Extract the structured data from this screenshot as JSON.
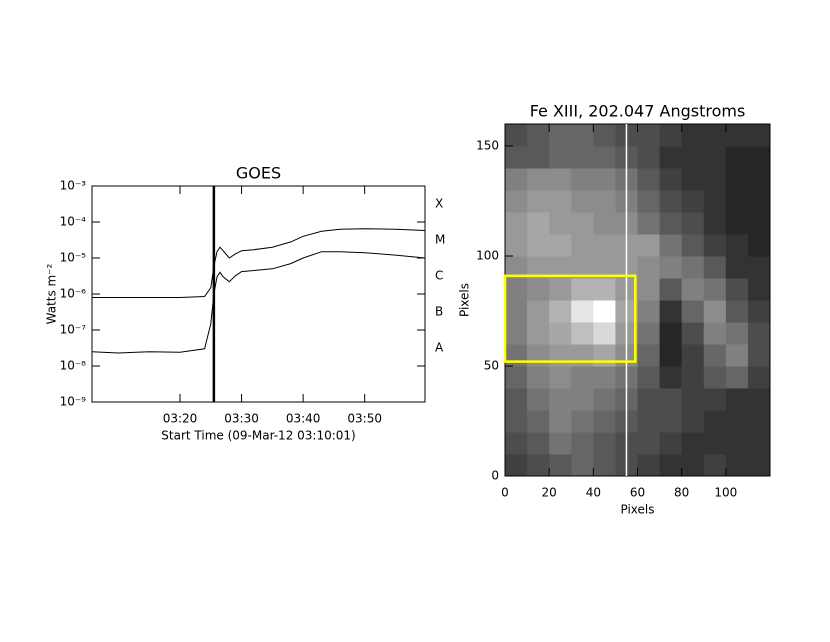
{
  "chart_data": [
    {
      "type": "line",
      "title": "GOES",
      "xlabel": "Start Time (09-Mar-12 03:10:01)",
      "ylabel": "Watts m⁻²",
      "log_y": true,
      "xlim": [
        5.7,
        59.8
      ],
      "xticks": [
        {
          "value": 20,
          "label": "03:20"
        },
        {
          "value": 30,
          "label": "03:30"
        },
        {
          "value": 40,
          "label": "03:40"
        },
        {
          "value": 50,
          "label": "03:50"
        }
      ],
      "ylim": [
        1e-09,
        0.001
      ],
      "yticks": [
        {
          "value": 1e-09,
          "label": "10⁻⁹"
        },
        {
          "value": 1e-08,
          "label": "10⁻⁸"
        },
        {
          "value": 1e-07,
          "label": "10⁻⁷"
        },
        {
          "value": 1e-06,
          "label": "10⁻⁶"
        },
        {
          "value": 1e-05,
          "label": "10⁻⁵"
        },
        {
          "value": 0.0001,
          "label": "10⁻⁴"
        },
        {
          "value": 0.001,
          "label": "10⁻³"
        }
      ],
      "flare_classes": [
        {
          "value": 1e-08,
          "label": "A"
        },
        {
          "value": 1e-07,
          "label": "B"
        },
        {
          "value": 1e-06,
          "label": "C"
        },
        {
          "value": 1e-05,
          "label": "M"
        },
        {
          "value": 0.0001,
          "label": "X"
        }
      ],
      "marker_x": 25.5,
      "x": [
        5.7,
        10,
        15,
        20,
        24,
        25,
        25.5,
        26,
        26.5,
        27,
        28,
        29,
        30,
        32,
        35,
        38,
        40,
        43,
        46,
        50,
        55,
        59.8
      ],
      "series": [
        {
          "color": "#000000",
          "values": [
            8e-07,
            8e-07,
            8e-07,
            8e-07,
            8.5e-07,
            1.5e-06,
            6e-06,
            1.5e-05,
            2e-05,
            1.6e-05,
            1e-05,
            1.3e-05,
            1.6e-05,
            1.7e-05,
            2e-05,
            2.8e-05,
            4e-05,
            5.5e-05,
            6.3e-05,
            6.5e-05,
            6.3e-05,
            5.8e-05
          ]
        },
        {
          "color": "#000000",
          "values": [
            2.5e-08,
            2.3e-08,
            2.5e-08,
            2.4e-08,
            3e-08,
            1.5e-07,
            1e-06,
            3e-06,
            4e-06,
            3e-06,
            2.2e-06,
            3.2e-06,
            4.2e-06,
            4.5e-06,
            5e-06,
            7e-06,
            1e-05,
            1.5e-05,
            1.5e-05,
            1.4e-05,
            1.2e-05,
            1e-05
          ]
        }
      ]
    },
    {
      "type": "image",
      "title": "Fe XIII, 202.047 Angstroms",
      "xlabel": "Pixels",
      "ylabel": "Pixels",
      "xlim": [
        0,
        120
      ],
      "ylim": [
        0,
        160
      ],
      "xticks": [
        0,
        20,
        40,
        60,
        80,
        100
      ],
      "yticks": [
        0,
        50,
        100,
        150
      ],
      "cursor_x": 55,
      "cursor_color": "#ffffff",
      "box": {
        "x": [
          0,
          59
        ],
        "y": [
          52,
          91
        ],
        "color": "#ffff00"
      },
      "z": [
        [
          0.25,
          0.3,
          0.35,
          0.4,
          0.35,
          0.3,
          0.25,
          0.2,
          0.2,
          0.25,
          0.2,
          0.2
        ],
        [
          0.3,
          0.35,
          0.45,
          0.4,
          0.35,
          0.3,
          0.3,
          0.25,
          0.2,
          0.2,
          0.2,
          0.2
        ],
        [
          0.35,
          0.4,
          0.5,
          0.45,
          0.4,
          0.35,
          0.3,
          0.3,
          0.25,
          0.2,
          0.2,
          0.2
        ],
        [
          0.35,
          0.45,
          0.5,
          0.5,
          0.45,
          0.4,
          0.3,
          0.3,
          0.25,
          0.25,
          0.2,
          0.2
        ],
        [
          0.4,
          0.5,
          0.55,
          0.5,
          0.5,
          0.45,
          0.35,
          0.2,
          0.25,
          0.35,
          0.4,
          0.25
        ],
        [
          0.45,
          0.55,
          0.6,
          0.6,
          0.65,
          0.55,
          0.4,
          0.15,
          0.25,
          0.4,
          0.5,
          0.3
        ],
        [
          0.5,
          0.6,
          0.65,
          0.75,
          0.85,
          0.6,
          0.45,
          0.15,
          0.3,
          0.5,
          0.45,
          0.3
        ],
        [
          0.5,
          0.6,
          0.7,
          0.9,
          1.0,
          0.65,
          0.5,
          0.2,
          0.4,
          0.55,
          0.35,
          0.25
        ],
        [
          0.5,
          0.55,
          0.6,
          0.7,
          0.7,
          0.6,
          0.55,
          0.35,
          0.5,
          0.45,
          0.3,
          0.2
        ],
        [
          0.55,
          0.6,
          0.6,
          0.6,
          0.6,
          0.6,
          0.55,
          0.5,
          0.45,
          0.35,
          0.2,
          0.2
        ],
        [
          0.6,
          0.65,
          0.65,
          0.6,
          0.6,
          0.6,
          0.6,
          0.45,
          0.35,
          0.25,
          0.2,
          0.15
        ],
        [
          0.6,
          0.65,
          0.6,
          0.6,
          0.55,
          0.55,
          0.45,
          0.35,
          0.3,
          0.2,
          0.15,
          0.15
        ],
        [
          0.55,
          0.6,
          0.6,
          0.55,
          0.55,
          0.5,
          0.4,
          0.3,
          0.25,
          0.2,
          0.15,
          0.15
        ],
        [
          0.5,
          0.55,
          0.55,
          0.5,
          0.5,
          0.45,
          0.35,
          0.25,
          0.2,
          0.2,
          0.15,
          0.15
        ],
        [
          0.35,
          0.35,
          0.4,
          0.4,
          0.4,
          0.35,
          0.3,
          0.2,
          0.2,
          0.2,
          0.15,
          0.15
        ],
        [
          0.3,
          0.35,
          0.4,
          0.4,
          0.35,
          0.3,
          0.3,
          0.25,
          0.2,
          0.2,
          0.2,
          0.2
        ]
      ]
    }
  ]
}
